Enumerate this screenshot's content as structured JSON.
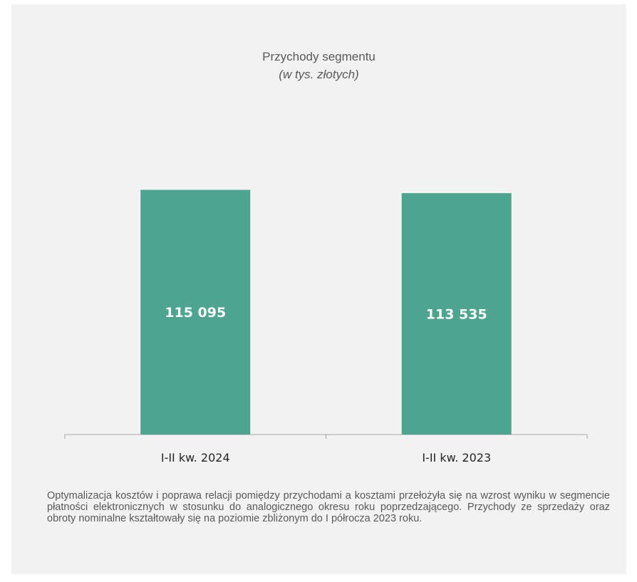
{
  "chart_data": {
    "type": "bar",
    "title": "Przychody segmentu",
    "subtitle": "(w tys. złotych)",
    "categories": [
      "I-II kw. 2024",
      "I-II kw. 2023"
    ],
    "values": [
      115095,
      113535
    ],
    "value_labels": [
      "115 095",
      "113 535"
    ],
    "ylim": [
      0,
      130000
    ],
    "grid": false,
    "bar_color": "#4ea58f",
    "label_color": "#ffffff"
  },
  "description": "Optymalizacja kosztów i poprawa relacji pomiędzy przychodami a kosztami przełożyła się na wzrost wyniku w segmencie płatności elektronicznych w stosunku do analogicznego okresu roku poprzedzającego. Przychody ze sprzedaży oraz obroty nominalne kształtowały się na poziomie zbliżonym do I półrocza 2023 roku."
}
